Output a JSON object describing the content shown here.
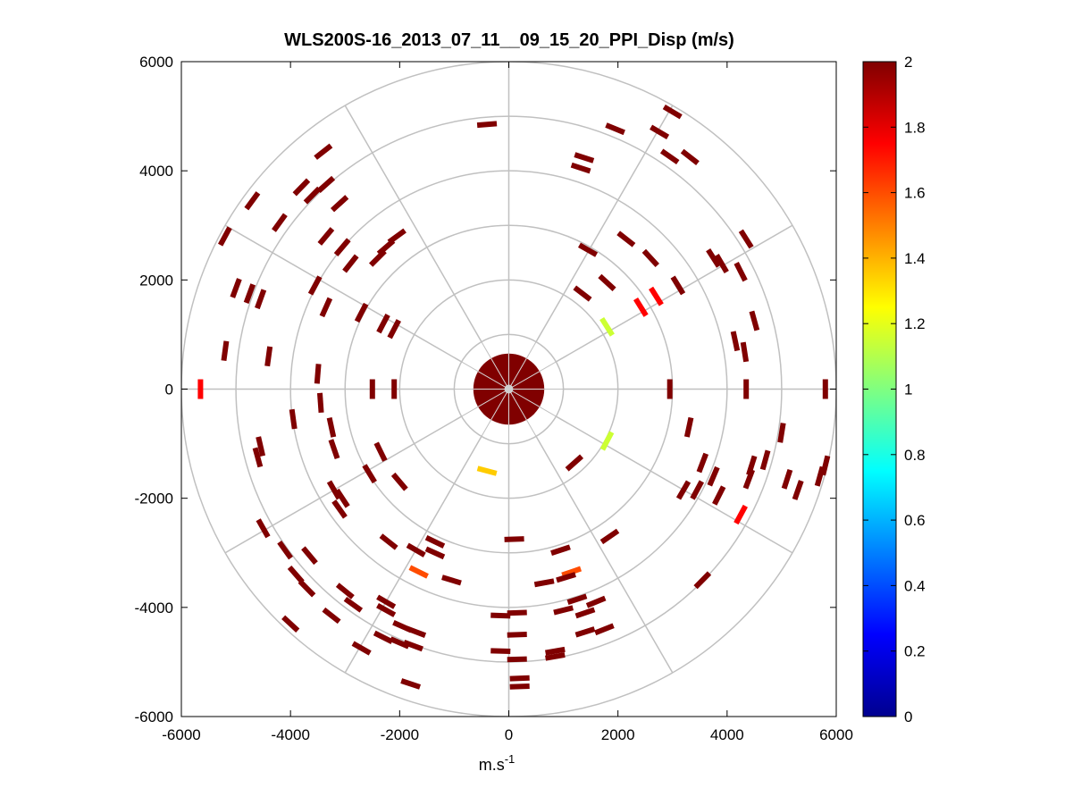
{
  "chart_data": {
    "type": "scatter",
    "subtype": "polar-ppi",
    "title": "WLS200S-16_2013_07_11__09_15_20_PPI_Disp (m/s)",
    "xlabel": "m.s",
    "xlabel_sup": "-1",
    "ylabel": "",
    "xlim": [
      -6000,
      6000
    ],
    "ylim": [
      -6000,
      6000
    ],
    "x_ticks": [
      -6000,
      -4000,
      -2000,
      0,
      2000,
      4000,
      6000
    ],
    "y_ticks": [
      6000,
      4000,
      2000,
      0,
      -2000,
      -4000,
      -6000
    ],
    "x_tick_labels": [
      "-6000",
      "-4000",
      "-2000",
      "0",
      "2000",
      "4000",
      "6000"
    ],
    "y_tick_labels": [
      "6000",
      "4000",
      "2000",
      "0",
      "-2000",
      "-4000",
      "-6000"
    ],
    "range_rings": [
      1000,
      2000,
      3000,
      4000,
      5000,
      6000
    ],
    "spoke_angles_deg": [
      0,
      30,
      60,
      90,
      120,
      150,
      180,
      210,
      240,
      270,
      300,
      330
    ],
    "colorbar": {
      "min": 0,
      "max": 2,
      "tick_values": [
        0,
        0.2,
        0.4,
        0.6,
        0.8,
        1,
        1.2,
        1.4,
        1.6,
        1.8,
        2
      ],
      "tick_labels": [
        "0",
        "0.2",
        "0.4",
        "0.6",
        "0.8",
        "1",
        "1.2",
        "1.4",
        "1.6",
        "1.8",
        "2"
      ],
      "colormap": "jet"
    },
    "central_blob": {
      "radius": 650,
      "value": 2
    },
    "series": [
      {
        "name": "PPI displacement (m/s)",
        "points": [
          {
            "x": -400,
            "y": 4850,
            "v": 2
          },
          {
            "x": 1950,
            "y": 4770,
            "v": 2
          },
          {
            "x": 3000,
            "y": 5080,
            "v": 2
          },
          {
            "x": 2760,
            "y": 4710,
            "v": 2
          },
          {
            "x": 3320,
            "y": 4250,
            "v": 2
          },
          {
            "x": 2950,
            "y": 4260,
            "v": 2
          },
          {
            "x": 1380,
            "y": 4240,
            "v": 2
          },
          {
            "x": 1320,
            "y": 4050,
            "v": 2
          },
          {
            "x": -3400,
            "y": 4350,
            "v": 2
          },
          {
            "x": -3800,
            "y": 3700,
            "v": 2
          },
          {
            "x": -3600,
            "y": 3550,
            "v": 2
          },
          {
            "x": -3350,
            "y": 3750,
            "v": 2
          },
          {
            "x": -4700,
            "y": 3450,
            "v": 2
          },
          {
            "x": -3100,
            "y": 3400,
            "v": 2
          },
          {
            "x": -4200,
            "y": 3050,
            "v": 2
          },
          {
            "x": -5200,
            "y": 2800,
            "v": 2
          },
          {
            "x": -3350,
            "y": 2800,
            "v": 2
          },
          {
            "x": -3050,
            "y": 2600,
            "v": 2
          },
          {
            "x": -2050,
            "y": 2800,
            "v": 2
          },
          {
            "x": -2250,
            "y": 2600,
            "v": 2
          },
          {
            "x": -2400,
            "y": 2400,
            "v": 2
          },
          {
            "x": -2900,
            "y": 2300,
            "v": 2
          },
          {
            "x": 2150,
            "y": 2750,
            "v": 2
          },
          {
            "x": 4350,
            "y": 2750,
            "v": 2
          },
          {
            "x": 3750,
            "y": 2400,
            "v": 2
          },
          {
            "x": 3900,
            "y": 2300,
            "v": 2
          },
          {
            "x": 4250,
            "y": 2150,
            "v": 2
          },
          {
            "x": 2600,
            "y": 2400,
            "v": 2
          },
          {
            "x": 3100,
            "y": 1900,
            "v": 2
          },
          {
            "x": 1450,
            "y": 2550,
            "v": 2
          },
          {
            "x": 1800,
            "y": 1950,
            "v": 2
          },
          {
            "x": 1350,
            "y": 1750,
            "v": 2
          },
          {
            "x": -5000,
            "y": 1850,
            "v": 2
          },
          {
            "x": -4750,
            "y": 1750,
            "v": 2
          },
          {
            "x": -4550,
            "y": 1650,
            "v": 2
          },
          {
            "x": -3550,
            "y": 1900,
            "v": 2
          },
          {
            "x": -3350,
            "y": 1500,
            "v": 2
          },
          {
            "x": -2700,
            "y": 1400,
            "v": 2
          },
          {
            "x": -2300,
            "y": 1200,
            "v": 2
          },
          {
            "x": -2100,
            "y": 1100,
            "v": 2
          },
          {
            "x": 2700,
            "y": 1700,
            "v": 1.75
          },
          {
            "x": 2420,
            "y": 1500,
            "v": 1.75
          },
          {
            "x": 4500,
            "y": 1250,
            "v": 2
          },
          {
            "x": 4150,
            "y": 880,
            "v": 2
          },
          {
            "x": 4320,
            "y": 680,
            "v": 2
          },
          {
            "x": 1800,
            "y": 1140,
            "v": 1.15
          },
          {
            "x": -5200,
            "y": 700,
            "v": 2
          },
          {
            "x": -4400,
            "y": 600,
            "v": 2
          },
          {
            "x": -3500,
            "y": 280,
            "v": 2
          },
          {
            "x": -2500,
            "y": 0,
            "v": 2
          },
          {
            "x": -2100,
            "y": 0,
            "v": 2
          },
          {
            "x": 2950,
            "y": 0,
            "v": 2
          },
          {
            "x": 4350,
            "y": 0,
            "v": 2
          },
          {
            "x": 5800,
            "y": 0,
            "v": 2
          },
          {
            "x": -5650,
            "y": 0,
            "v": 1.75
          },
          {
            "x": -3450,
            "y": -250,
            "v": 2
          },
          {
            "x": -3950,
            "y": -550,
            "v": 2
          },
          {
            "x": -3250,
            "y": -700,
            "v": 2
          },
          {
            "x": -3200,
            "y": -1100,
            "v": 2
          },
          {
            "x": -2350,
            "y": -1150,
            "v": 2
          },
          {
            "x": -4550,
            "y": -1050,
            "v": 2
          },
          {
            "x": -4600,
            "y": -1250,
            "v": 2
          },
          {
            "x": 3300,
            "y": -700,
            "v": 2
          },
          {
            "x": 5000,
            "y": -800,
            "v": 2
          },
          {
            "x": 5800,
            "y": -1400,
            "v": 2
          },
          {
            "x": 4700,
            "y": -1300,
            "v": 2
          },
          {
            "x": 4450,
            "y": -1400,
            "v": 2
          },
          {
            "x": 4400,
            "y": -1650,
            "v": 2
          },
          {
            "x": 3550,
            "y": -1350,
            "v": 2
          },
          {
            "x": 3750,
            "y": -1600,
            "v": 2
          },
          {
            "x": 3450,
            "y": -1850,
            "v": 2
          },
          {
            "x": 3200,
            "y": -1850,
            "v": 2
          },
          {
            "x": 5100,
            "y": -1650,
            "v": 2
          },
          {
            "x": 5300,
            "y": -1850,
            "v": 2
          },
          {
            "x": 5700,
            "y": -1600,
            "v": 2
          },
          {
            "x": 4250,
            "y": -2300,
            "v": 1.75
          },
          {
            "x": 3850,
            "y": -1950,
            "v": 2
          },
          {
            "x": -2550,
            "y": -1550,
            "v": 2
          },
          {
            "x": -2000,
            "y": -1700,
            "v": 2
          },
          {
            "x": -3200,
            "y": -1850,
            "v": 2
          },
          {
            "x": -3050,
            "y": -2000,
            "v": 2
          },
          {
            "x": -3100,
            "y": -2200,
            "v": 2
          },
          {
            "x": -4500,
            "y": -2550,
            "v": 2
          },
          {
            "x": -4100,
            "y": -2950,
            "v": 2
          },
          {
            "x": -3650,
            "y": -3050,
            "v": 2
          },
          {
            "x": -2200,
            "y": -2800,
            "v": 2
          },
          {
            "x": -1700,
            "y": -2950,
            "v": 2
          },
          {
            "x": -1350,
            "y": -3000,
            "v": 2
          },
          {
            "x": -1350,
            "y": -2800,
            "v": 2
          },
          {
            "x": -1650,
            "y": -3350,
            "v": 1.6
          },
          {
            "x": -1050,
            "y": -3500,
            "v": 2
          },
          {
            "x": -3900,
            "y": -3400,
            "v": 2
          },
          {
            "x": -3700,
            "y": -3650,
            "v": 2
          },
          {
            "x": -3000,
            "y": -3700,
            "v": 2
          },
          {
            "x": -2850,
            "y": -3950,
            "v": 2
          },
          {
            "x": -2250,
            "y": -3900,
            "v": 2
          },
          {
            "x": -2250,
            "y": -4050,
            "v": 2
          },
          {
            "x": -4000,
            "y": -4300,
            "v": 2
          },
          {
            "x": -3250,
            "y": -4150,
            "v": 2
          },
          {
            "x": -1950,
            "y": -4350,
            "v": 2
          },
          {
            "x": -1700,
            "y": -4450,
            "v": 2
          },
          {
            "x": -2300,
            "y": -4550,
            "v": 2
          },
          {
            "x": -2000,
            "y": -4650,
            "v": 2
          },
          {
            "x": -1750,
            "y": -4700,
            "v": 2
          },
          {
            "x": -2700,
            "y": -4750,
            "v": 2
          },
          {
            "x": -1800,
            "y": -5400,
            "v": 2
          },
          {
            "x": 1150,
            "y": -3350,
            "v": 1.6
          },
          {
            "x": 1050,
            "y": -3450,
            "v": 2
          },
          {
            "x": 650,
            "y": -3550,
            "v": 2
          },
          {
            "x": 1250,
            "y": -3850,
            "v": 2
          },
          {
            "x": 1600,
            "y": -3900,
            "v": 2
          },
          {
            "x": 1000,
            "y": -4050,
            "v": 2
          },
          {
            "x": 1400,
            "y": -4100,
            "v": 2
          },
          {
            "x": 1750,
            "y": -4400,
            "v": 2
          },
          {
            "x": 1400,
            "y": -4450,
            "v": 2
          },
          {
            "x": 850,
            "y": -4800,
            "v": 2
          },
          {
            "x": 850,
            "y": -4900,
            "v": 2
          },
          {
            "x": 150,
            "y": -4500,
            "v": 2
          },
          {
            "x": -150,
            "y": -4800,
            "v": 2
          },
          {
            "x": 150,
            "y": -4950,
            "v": 2
          },
          {
            "x": 200,
            "y": -5300,
            "v": 2
          },
          {
            "x": 200,
            "y": -5450,
            "v": 2
          },
          {
            "x": -150,
            "y": -4150,
            "v": 2
          },
          {
            "x": 150,
            "y": -4100,
            "v": 2
          },
          {
            "x": 100,
            "y": -2750,
            "v": 2
          },
          {
            "x": 950,
            "y": -2950,
            "v": 2
          },
          {
            "x": 1850,
            "y": -2700,
            "v": 2
          },
          {
            "x": 3550,
            "y": -3500,
            "v": 2
          },
          {
            "x": 1800,
            "y": -950,
            "v": 1.15
          },
          {
            "x": 1200,
            "y": -1350,
            "v": 2
          },
          {
            "x": -400,
            "y": -1500,
            "v": 1.35
          }
        ]
      }
    ]
  }
}
